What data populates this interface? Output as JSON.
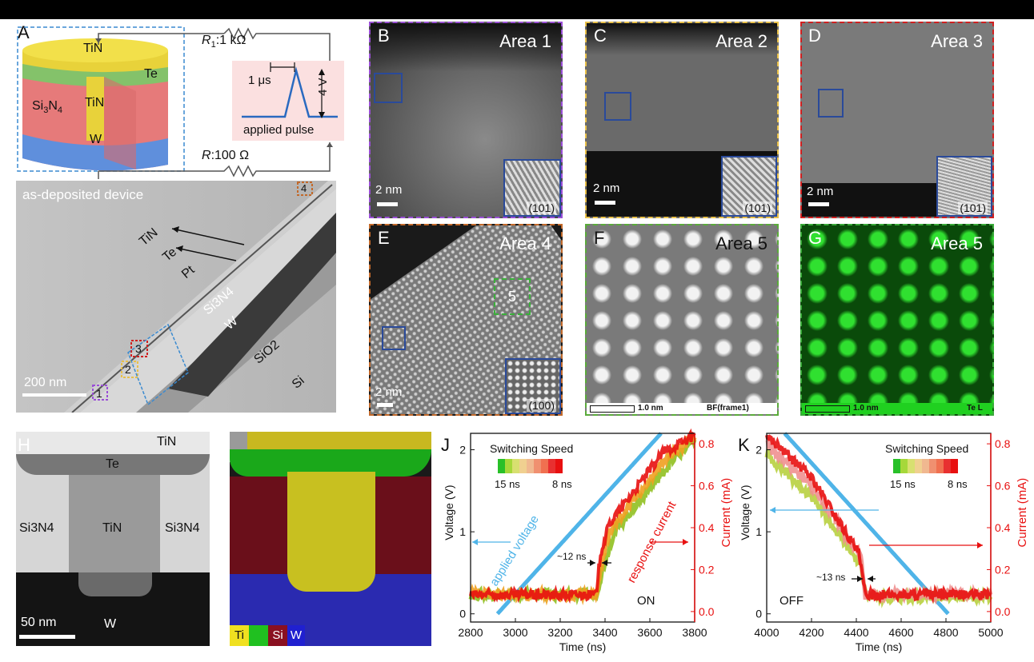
{
  "panels": {
    "A": {
      "label": "A",
      "stack": {
        "tin_top": "TiN",
        "te": "Te",
        "si3n4": "Si",
        "si3n4_sub3": "3",
        "si3n4_N": "N",
        "si3n4_sub4": "4",
        "tin_mid": "TiN",
        "w": "W"
      },
      "r1": {
        "name": "R",
        "sub": "1",
        "value": ":1 kΩ"
      },
      "r": {
        "name": "R",
        "value": ":100 Ω"
      },
      "pulse": {
        "width": "1 μs",
        "amplitude": "4 V",
        "caption": "applied pulse"
      },
      "tem": {
        "title": "as-deposited device",
        "scalebar": "200 nm",
        "labels": {
          "tin": "TiN",
          "te": "Te",
          "pt": "Pt",
          "si3n4": "Si3N4",
          "w": "W",
          "sio2": "SiO2",
          "si": "Si"
        },
        "areas": [
          "1",
          "2",
          "3",
          "4"
        ]
      }
    },
    "B": {
      "label": "B",
      "title": "Area 1",
      "scalebar": "2 nm",
      "inset": "(101)",
      "border": "#9a4fd6"
    },
    "C": {
      "label": "C",
      "title": "Area 2",
      "scalebar": "2 nm",
      "inset": "(101)",
      "border": "#e8c04a"
    },
    "D": {
      "label": "D",
      "title": "Area 3",
      "scalebar": "2 nm",
      "inset": "(101)",
      "border": "#d02020"
    },
    "E": {
      "label": "E",
      "title": "Area 4",
      "scalebar": "2 nm",
      "inset": "(100)",
      "marker": "5",
      "border": "#c2692a"
    },
    "F": {
      "label": "F",
      "title": "Area 5",
      "scale_text": "1.0 nm",
      "tag": "BF(frame1)",
      "border": "#5aab3a"
    },
    "G": {
      "label": "G",
      "title": "Area 5",
      "scale_text": "1.0 nm",
      "tag": "Te L",
      "border": "#3aab3a"
    },
    "H": {
      "label": "H",
      "tin": "TiN",
      "te": "Te",
      "si3n4_left": "Si3N4",
      "tin_center": "TiN",
      "si3n4_right": "Si3N4",
      "w": "W",
      "scalebar": "50 nm"
    },
    "EDS": {
      "legend": [
        "Ti",
        "",
        "Si",
        "W"
      ],
      "legend_colors": [
        "#f0e020",
        "#20c020",
        "#8a1020",
        "#2020d0"
      ]
    },
    "J": {
      "label": "J"
    },
    "K": {
      "label": "K"
    }
  },
  "chart_data": [
    {
      "type": "line",
      "panel": "J",
      "title": "",
      "xlabel": "Time (ns)",
      "ylabel": "Voltage (V)",
      "y2label": "Current (mA)",
      "xlim": [
        2800,
        3800
      ],
      "ylim": [
        -0.1,
        2.2
      ],
      "y2lim": [
        -0.05,
        0.85
      ],
      "xticks": [
        2800,
        3000,
        3200,
        3400,
        3600,
        3800
      ],
      "yticks": [
        0,
        1,
        2
      ],
      "y2ticks": [
        0.0,
        0.2,
        0.4,
        0.6,
        0.8
      ],
      "y2ticklabels": [
        "0.0",
        "0.2",
        "0.4",
        "0.6",
        "0.8"
      ],
      "legend_title": "Switching Speed",
      "legend_low": "15 ns",
      "legend_high": "8 ns",
      "annotations": [
        "applied voltage",
        "response current",
        "~12 ns",
        "ON"
      ],
      "series": [
        {
          "name": "applied voltage",
          "axis": "left",
          "color": "#4fb4e8",
          "x": [
            2920,
            3650
          ],
          "y": [
            0.0,
            2.2
          ]
        },
        {
          "name": "",
          "axis": "right",
          "color": "#90c020",
          "x": [
            2800,
            3360,
            3400,
            3440,
            3700,
            3800
          ],
          "y": [
            0.08,
            0.08,
            0.24,
            0.38,
            0.72,
            0.82
          ]
        },
        {
          "name": "",
          "axis": "right",
          "color": "#f0a020",
          "x": [
            2800,
            3360,
            3390,
            3430,
            3680,
            3800
          ],
          "y": [
            0.08,
            0.08,
            0.26,
            0.4,
            0.74,
            0.83
          ]
        },
        {
          "name": "",
          "axis": "right",
          "color": "#e81010",
          "x": [
            2800,
            3360,
            3380,
            3420,
            3660,
            3800
          ],
          "y": [
            0.08,
            0.08,
            0.28,
            0.42,
            0.76,
            0.84
          ]
        }
      ]
    },
    {
      "type": "line",
      "panel": "K",
      "title": "",
      "xlabel": "Time (ns)",
      "ylabel": "Voltage (V)",
      "y2label": "Current (mA)",
      "xlim": [
        4000,
        5000
      ],
      "ylim": [
        -0.1,
        2.2
      ],
      "y2lim": [
        -0.05,
        0.85
      ],
      "xticks": [
        4000,
        4200,
        4400,
        4600,
        4800,
        5000
      ],
      "yticks": [
        0,
        1,
        2
      ],
      "y2ticks": [
        0.0,
        0.2,
        0.4,
        0.6,
        0.8
      ],
      "y2ticklabels": [
        "0.0",
        "0.2",
        "0.4",
        "0.6",
        "0.8"
      ],
      "legend_title": "Switching Speed",
      "legend_low": "15 ns",
      "legend_high": "8 ns",
      "annotations": [
        "~13 ns",
        "OFF"
      ],
      "series": [
        {
          "name": "applied voltage",
          "axis": "left",
          "color": "#4fb4e8",
          "x": [
            4080,
            4810
          ],
          "y": [
            2.2,
            0.0
          ]
        },
        {
          "name": "",
          "axis": "right",
          "color": "#b8d040",
          "x": [
            4000,
            4200,
            4420,
            4450,
            5000
          ],
          "y": [
            0.75,
            0.55,
            0.22,
            0.07,
            0.07
          ]
        },
        {
          "name": "",
          "axis": "right",
          "color": "#f09090",
          "x": [
            4000,
            4200,
            4420,
            4440,
            5000
          ],
          "y": [
            0.8,
            0.6,
            0.26,
            0.08,
            0.08
          ]
        },
        {
          "name": "",
          "axis": "right",
          "color": "#e81010",
          "x": [
            4000,
            4200,
            4410,
            4440,
            5000
          ],
          "y": [
            0.84,
            0.64,
            0.28,
            0.08,
            0.08
          ]
        }
      ]
    }
  ]
}
